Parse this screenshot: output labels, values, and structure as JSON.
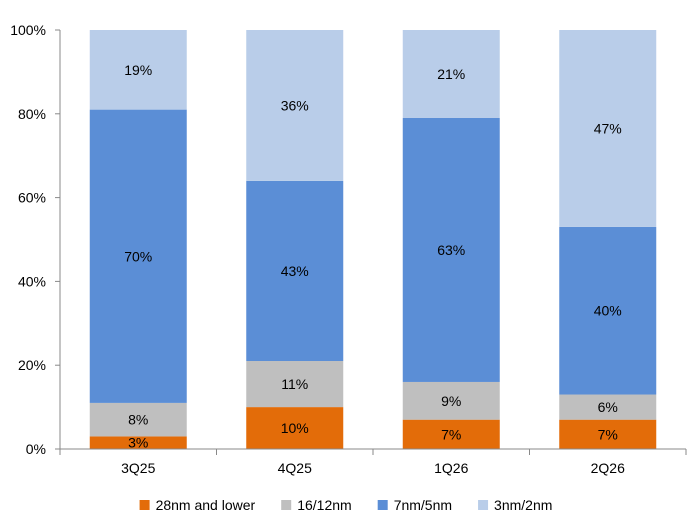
{
  "chart_data": {
    "type": "bar",
    "stacked": true,
    "categories": [
      "3Q25",
      "4Q25",
      "1Q26",
      "2Q26"
    ],
    "series": [
      {
        "name": "28nm and lower",
        "color": "#E36C09",
        "values": [
          3,
          10,
          7,
          7
        ],
        "labels": [
          "3%",
          "10%",
          "7%",
          "7%"
        ]
      },
      {
        "name": "16/12nm",
        "color": "#BFBFBF",
        "values": [
          8,
          11,
          9,
          6
        ],
        "labels": [
          "8%",
          "11%",
          "9%",
          "6%"
        ]
      },
      {
        "name": "7nm/5nm",
        "color": "#5B8ED6",
        "values": [
          70,
          43,
          63,
          40
        ],
        "labels": [
          "70%",
          "43%",
          "63%",
          "40%"
        ]
      },
      {
        "name": "3nm/2nm",
        "color": "#B9CDE9",
        "values": [
          19,
          36,
          21,
          47
        ],
        "labels": [
          "19%",
          "36%",
          "21%",
          "47%"
        ]
      }
    ],
    "ylim": [
      0,
      100
    ],
    "yticks": [
      0,
      20,
      40,
      60,
      80,
      100
    ],
    "ytick_labels": [
      "0%",
      "20%",
      "40%",
      "60%",
      "80%",
      "100%"
    ],
    "grid": false,
    "legend_position": "bottom",
    "title": "",
    "xlabel": "",
    "ylabel": ""
  }
}
